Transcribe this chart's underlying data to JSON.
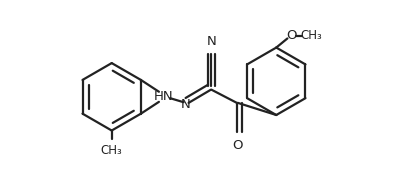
{
  "bg_color": "#ffffff",
  "line_color": "#222222",
  "line_width": 1.6,
  "font_size": 9.5,
  "figsize": [
    4.19,
    1.7
  ],
  "dpi": 100,
  "xlim": [
    0.0,
    8.5
  ],
  "ylim": [
    -1.5,
    3.5
  ]
}
